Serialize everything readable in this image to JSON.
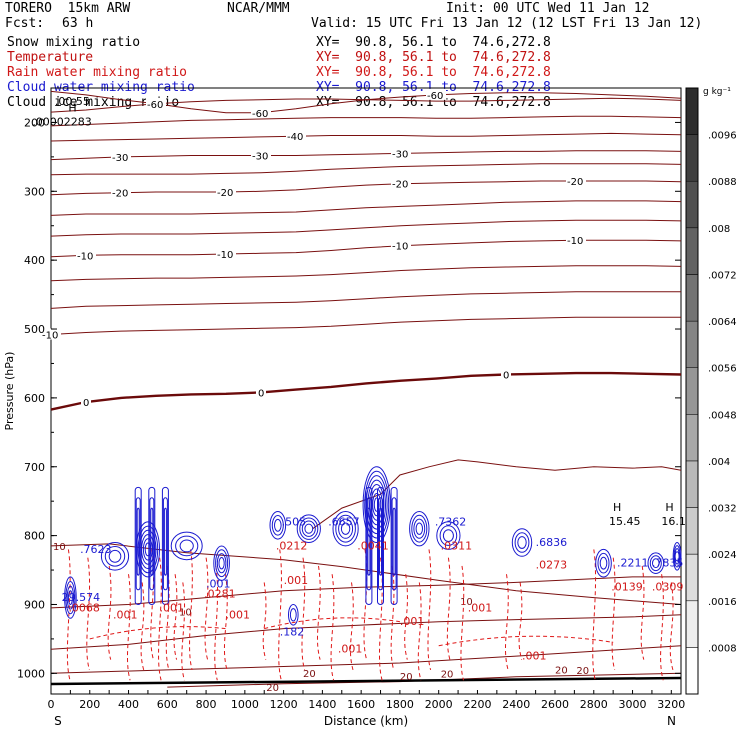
{
  "header": {
    "model": "TORERO  15km ARW",
    "org": "NCAR/MMM",
    "init": "Init: 00 UTC Wed 11 Jan 12",
    "fcst_label": "Fcst:",
    "fcst_value": "63 h",
    "valid": "Valid: 15 UTC Fri 13 Jan 12 (12 LST Fri 13 Jan 12)"
  },
  "fields": [
    {
      "name": "Snow mixing ratio",
      "xy": "XY=  90.8, 56.1 to  74.6,272.8",
      "color": "#000000"
    },
    {
      "name": "Temperature",
      "xy": "XY=  90.8, 56.1 to  74.6,272.8",
      "color": "#c01010"
    },
    {
      "name": "Rain water mixing ratio",
      "xy": "XY=  90.8, 56.1 to  74.6,272.8",
      "color": "#d01818"
    },
    {
      "name": "Cloud water mixing ratio",
      "xy": "XY=  90.8, 56.1 to  74.6,272.8",
      "color": "#1a1ad0"
    },
    {
      "name": "Cloud ice mixing ratio",
      "xy": "XY=  90.8, 56.1 to  74.6,272.8",
      "color": "#000000"
    }
  ],
  "chart_data": {
    "type": "contour",
    "xlabel": "Distance (km)",
    "ylabel": "Pressure (hPa)",
    "xlim": [
      0,
      3250
    ],
    "ylim": [
      150,
      1030
    ],
    "x_ticks": [
      0,
      100,
      200,
      300,
      400,
      500,
      600,
      700,
      800,
      900,
      1000,
      1100,
      1200,
      1300,
      1400,
      1500,
      1600,
      1700,
      1800,
      1900,
      2000,
      2100,
      2200,
      2300,
      2400,
      2500,
      2600,
      2700,
      2800,
      2900,
      3000,
      3100,
      3200
    ],
    "x_tick_labels": [
      "0",
      "",
      "200",
      "",
      "400",
      "",
      "600",
      "",
      "800",
      "",
      "1000",
      "",
      "1200",
      "",
      "1400",
      "",
      "1600",
      "",
      "1800",
      "",
      "2000",
      "",
      "2200",
      "",
      "2400",
      "",
      "2600",
      "",
      "2800",
      "",
      "3000",
      "",
      "3200"
    ],
    "y_ticks": [
      200,
      300,
      400,
      500,
      600,
      700,
      800,
      900,
      1000
    ],
    "y_tick_labels": [
      "200",
      "300",
      "400",
      "500",
      "600",
      "700",
      "800",
      "900",
      "1000"
    ],
    "left_end_label": "S",
    "right_end_label": "N",
    "colorbar": {
      "unit": "g kg⁻¹",
      "levels": [
        ".0008",
        ".0016",
        ".0024",
        ".0032",
        ".004",
        ".0048",
        ".0056",
        ".0064",
        ".0072",
        ".008",
        ".0088",
        ".0096"
      ]
    },
    "temperature_contours": [
      {
        "label": "-60",
        "p": [
          155,
          160,
          167,
          173,
          180,
          186,
          186,
          180,
          173,
          167,
          163,
          160,
          158,
          157,
          157,
          158,
          160,
          162,
          165
        ]
      },
      {
        "label": "",
        "p": [
          185,
          182,
          177,
          173,
          170,
          168,
          167,
          166,
          166,
          167,
          168,
          169,
          169,
          168,
          167,
          166,
          165,
          166,
          168
        ]
      },
      {
        "label": "",
        "p": [
          205,
          203,
          201,
          199,
          197,
          196,
          195,
          194,
          193,
          193,
          193,
          194,
          194,
          193,
          192,
          191,
          191,
          192,
          193
        ]
      },
      {
        "label": "-40",
        "p": [
          227,
          226,
          225,
          224,
          223,
          222,
          221,
          220,
          219,
          219,
          219,
          220,
          220,
          219,
          218,
          217,
          216,
          217,
          218
        ]
      },
      {
        "label": "-30",
        "p": [
          254,
          252,
          250,
          249,
          248,
          248,
          248,
          248,
          247,
          246,
          245,
          244,
          243,
          242,
          242,
          241,
          241,
          241,
          242
        ]
      },
      {
        "label": "",
        "p": [
          276,
          275,
          275,
          275,
          275,
          274,
          273,
          271,
          268,
          266,
          264,
          263,
          262,
          261,
          260,
          260,
          260,
          260,
          261
        ]
      },
      {
        "label": "-20",
        "p": [
          305,
          303,
          302,
          301,
          301,
          301,
          300,
          298,
          294,
          291,
          289,
          288,
          287,
          286,
          285,
          285,
          285,
          285,
          286
        ]
      },
      {
        "label": "",
        "p": [
          335,
          333,
          333,
          333,
          333,
          332,
          331,
          330,
          327,
          324,
          322,
          320,
          318,
          316,
          315,
          314,
          314,
          314,
          315
        ]
      },
      {
        "label": "",
        "p": [
          365,
          363,
          362,
          362,
          362,
          361,
          360,
          359,
          356,
          353,
          350,
          348,
          346,
          344,
          343,
          342,
          342,
          342,
          343
        ]
      },
      {
        "label": "-10",
        "p": [
          395,
          393,
          392,
          392,
          392,
          391,
          390,
          389,
          386,
          382,
          379,
          377,
          375,
          373,
          372,
          371,
          371,
          371,
          372
        ]
      },
      {
        "label": "",
        "p": [
          430,
          428,
          427,
          426,
          426,
          425,
          424,
          423,
          421,
          418,
          415,
          413,
          411,
          410,
          409,
          408,
          408,
          408,
          409
        ]
      },
      {
        "label": "",
        "p": [
          470,
          467,
          466,
          465,
          464,
          463,
          462,
          461,
          459,
          456,
          453,
          451,
          449,
          448,
          447,
          446,
          446,
          446,
          446
        ]
      },
      {
        "label": "-10",
        "p": [
          508,
          505,
          503,
          502,
          501,
          500,
          499,
          498,
          496,
          493,
          490,
          488,
          486,
          485,
          484,
          483,
          483,
          483,
          483
        ]
      }
    ],
    "zero_line": {
      "label": "0",
      "p": [
        617,
        606,
        600,
        597,
        595,
        594,
        592,
        588,
        584,
        579,
        575,
        572,
        568,
        566,
        565,
        564,
        564,
        565,
        566
      ]
    },
    "temperature_labels_note": "0, -10, -20, -30, -40, -60 C",
    "highs": [
      {
        "text": "H",
        "x": 110,
        "p": 190,
        "value": ".00002283"
      },
      {
        "text": "H",
        "x": 2920,
        "p": 770,
        "value": "15.45"
      },
      {
        "text": "H",
        "x": 3190,
        "p": 770,
        "value": "16.1"
      }
    ],
    "field_labels": [
      ".00.55",
      ".7623",
      ".505",
      ".6657",
      ".7362",
      ".0311",
      ".0041",
      ".6836",
      ".0273",
      ".2211",
      ".0139",
      ".7835",
      ".0309",
      "29.574",
      ".0068",
      ".182",
      ".001",
      ".0212",
      ".0281"
    ],
    "rain_labels": [
      ".001",
      ".001",
      ".001",
      ".001",
      ".001",
      ".001",
      ".001",
      ".001"
    ],
    "warm_labels": [
      "10",
      "10",
      "10",
      "10",
      "20",
      "20",
      "20"
    ]
  }
}
